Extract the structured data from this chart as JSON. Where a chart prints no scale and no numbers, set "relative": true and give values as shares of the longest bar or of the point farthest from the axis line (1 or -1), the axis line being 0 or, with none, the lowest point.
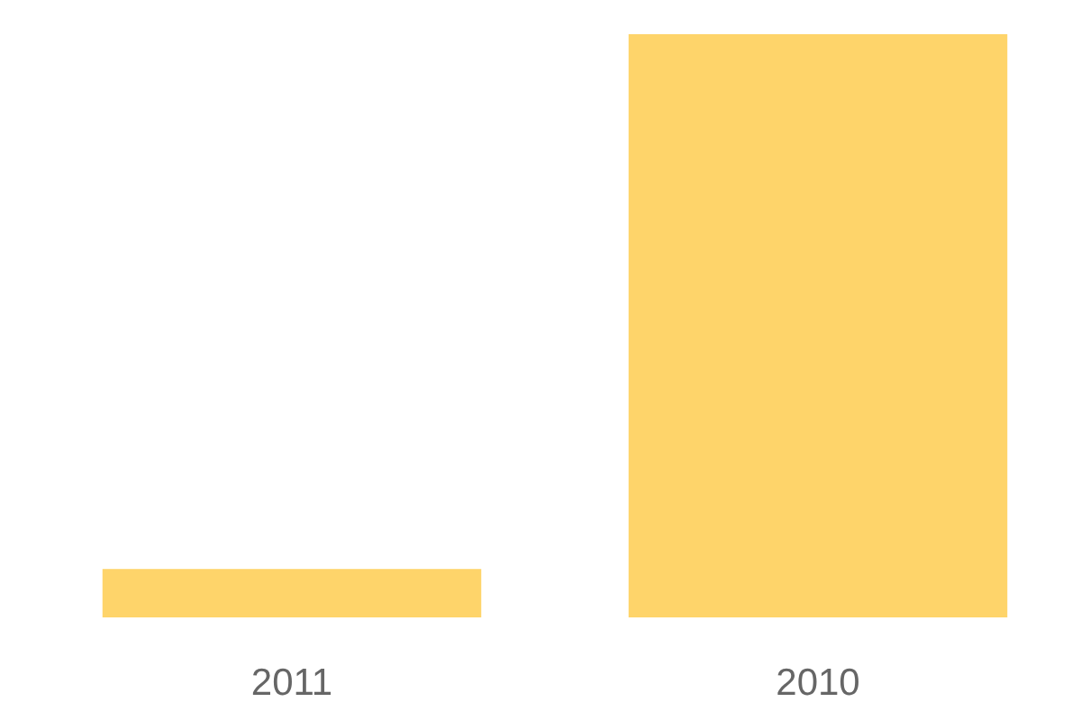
{
  "chart_data": {
    "type": "bar",
    "categories": [
      "2011",
      "2010"
    ],
    "values": [
      0.083,
      1
    ],
    "color": "#fed46a",
    "relative": true
  }
}
